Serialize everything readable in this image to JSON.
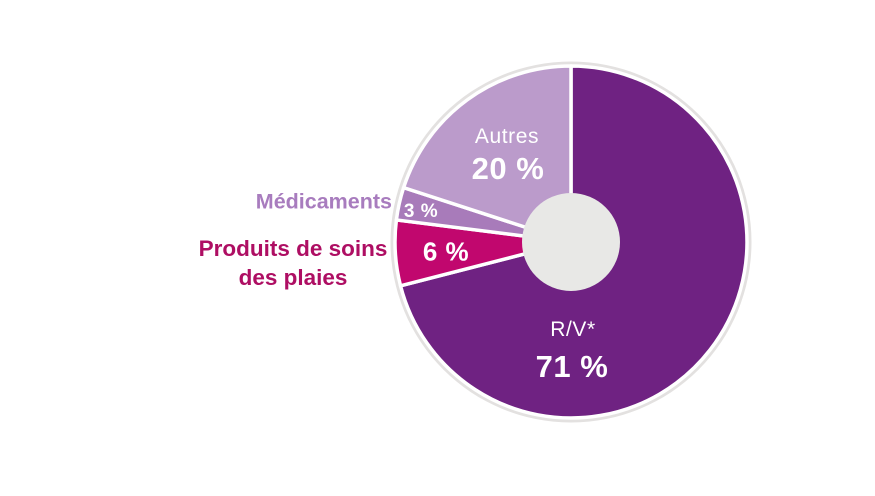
{
  "figure": {
    "background_color": "#FFFFFF"
  },
  "chart_data": {
    "type": "pie",
    "subtype": "donut",
    "title": "",
    "start_angle_deg": 0,
    "direction": "clockwise",
    "total": 100,
    "hole_color": "#E8E8E6",
    "halo_color": "#E3E1E0",
    "separator_color": "#FFFFFF",
    "legend_position": "none",
    "slices": [
      {
        "id": "rv",
        "label": "R/V*",
        "value": 71,
        "pct_label": "71 %",
        "color": "#6F2282",
        "value_label_color": "#FFFFFF",
        "label_placement": "inside"
      },
      {
        "id": "produits",
        "label": "Produits de soins des plaies",
        "label_lines": [
          "Produits de soins",
          "des plaies"
        ],
        "value": 6,
        "pct_label": "6 %",
        "color": "#C1076E",
        "label_color": "#AE0E63",
        "value_label_color": "#FFFFFF",
        "label_placement": "outside-left"
      },
      {
        "id": "medicaments",
        "label": "Médicaments",
        "value": 3,
        "pct_label": "3 %",
        "color": "#A87BBA",
        "label_color": "#A87CBE",
        "value_label_color": "#FFFFFF",
        "label_placement": "outside-left"
      },
      {
        "id": "autres",
        "label": "Autres",
        "value": 20,
        "pct_label": "20 %",
        "color": "#BB9BCB",
        "value_label_color": "#FFFFFF",
        "label_placement": "inside"
      }
    ]
  }
}
